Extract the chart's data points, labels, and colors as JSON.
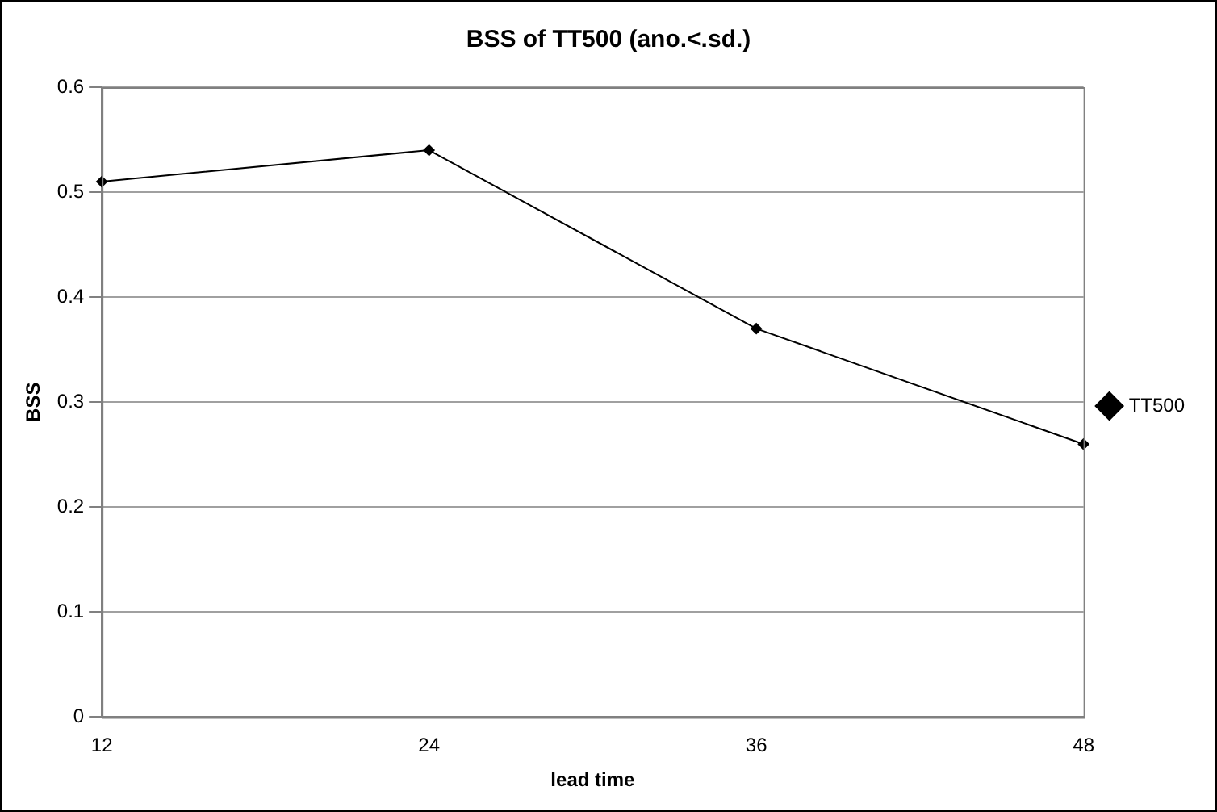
{
  "chart_data": {
    "type": "line",
    "title": "BSS of TT500 (ano.<.sd.)",
    "xlabel": "lead time",
    "ylabel": "BSS",
    "categories": [
      "12",
      "24",
      "36",
      "48"
    ],
    "series": [
      {
        "name": "TT500",
        "color": "#000000",
        "values": [
          0.51,
          0.54,
          0.37,
          0.26
        ]
      }
    ],
    "ylim": [
      0,
      0.6
    ],
    "yticks": [
      0,
      0.1,
      0.2,
      0.3,
      0.4,
      0.5,
      0.6
    ],
    "grid": "y",
    "legend": "right",
    "marker": "diamond",
    "line_style": "solid"
  }
}
